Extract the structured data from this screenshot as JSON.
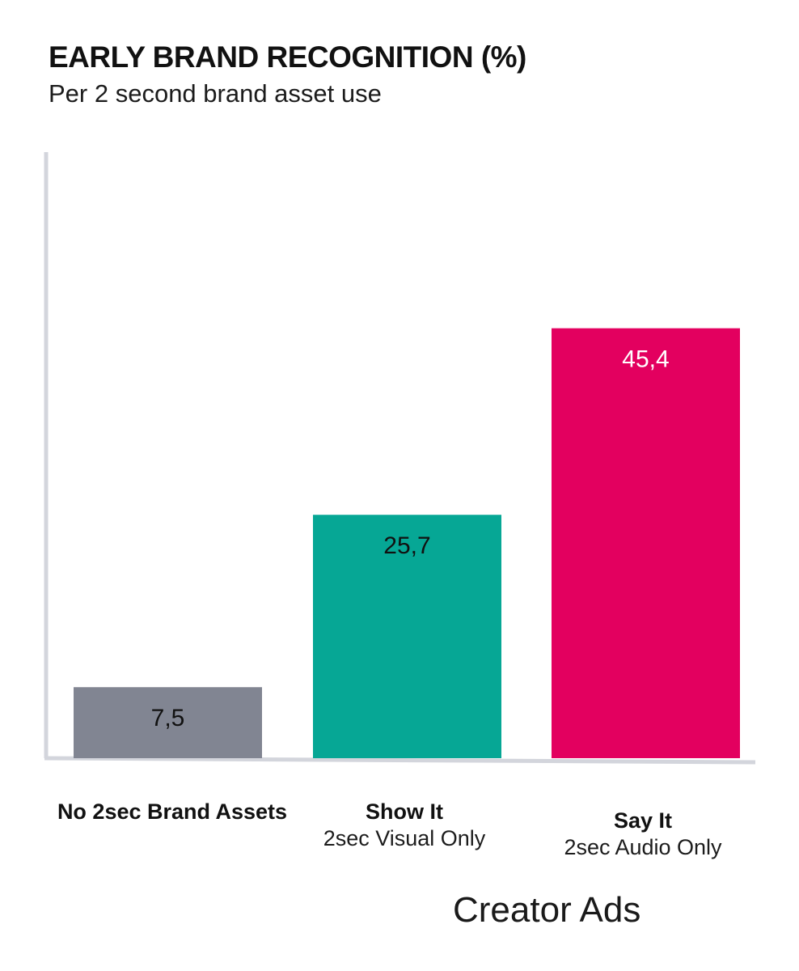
{
  "chart_data": {
    "type": "bar",
    "title": "EARLY BRAND RECOGNITION (%)",
    "subtitle": "Per 2 second brand asset use",
    "categories": [
      "No 2sec Brand Assets",
      "Show It",
      "Say It"
    ],
    "category_sublabels": [
      "",
      "2sec Visual Only",
      "2sec Audio Only"
    ],
    "values": [
      7.5,
      25.7,
      45.4
    ],
    "value_labels": [
      "7,5",
      "25,7",
      "45,4"
    ],
    "colors": [
      "#818592",
      "#06a795",
      "#e3005f"
    ],
    "value_label_colors": [
      "#111111",
      "#111111",
      "#ffffff"
    ],
    "axis_color": "#d3d5dc",
    "ylim": [
      0,
      64
    ],
    "grid": false,
    "footer": "Creator Ads"
  }
}
